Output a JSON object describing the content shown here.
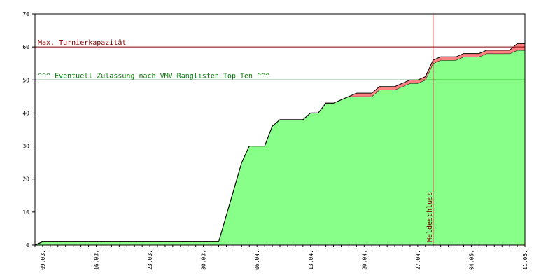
{
  "chart_data": {
    "type": "stacked-area",
    "categories": [
      null,
      "09.03.",
      null,
      null,
      null,
      null,
      null,
      null,
      "16.03.",
      null,
      null,
      null,
      null,
      null,
      null,
      "23.03.",
      null,
      null,
      null,
      null,
      null,
      null,
      "30.03.",
      null,
      null,
      null,
      null,
      null,
      null,
      "06.04.",
      null,
      null,
      null,
      null,
      null,
      null,
      "13.04.",
      null,
      null,
      null,
      null,
      null,
      null,
      "20.04.",
      null,
      null,
      null,
      null,
      null,
      null,
      "27.04.",
      null,
      null,
      null,
      null,
      null,
      null,
      "04.05.",
      null,
      null,
      null,
      null,
      null,
      null,
      "11.05."
    ],
    "series": [
      {
        "color": "#88ff88",
        "values": [
          0,
          1,
          1,
          1,
          1,
          1,
          1,
          1,
          1,
          1,
          1,
          1,
          1,
          1,
          1,
          1,
          1,
          1,
          1,
          1,
          1,
          1,
          1,
          1,
          1,
          9,
          17,
          25,
          30,
          30,
          30,
          36,
          38,
          38,
          38,
          38,
          40,
          40,
          43,
          43,
          44,
          45,
          45,
          45,
          45,
          47,
          47,
          47,
          48,
          49,
          49,
          50,
          55,
          56,
          56,
          56,
          57,
          57,
          57,
          58,
          58,
          58,
          58,
          59,
          59
        ]
      },
      {
        "color": "#ff8080",
        "values": [
          0,
          0,
          0,
          0,
          0,
          0,
          0,
          0,
          0,
          0,
          0,
          0,
          0,
          0,
          0,
          0,
          0,
          0,
          0,
          0,
          0,
          0,
          0,
          0,
          0,
          0,
          0,
          0,
          0,
          0,
          0,
          0,
          0,
          0,
          0,
          0,
          0,
          0,
          0,
          0,
          0,
          0,
          1,
          1,
          1,
          1,
          1,
          1,
          1,
          1,
          1,
          1,
          1,
          1,
          1,
          1,
          1,
          1,
          1,
          1,
          1,
          1,
          1,
          2,
          2
        ]
      }
    ],
    "ylim": [
      0,
      70
    ],
    "yticks": [
      0,
      10,
      20,
      30,
      40,
      50,
      60,
      70
    ],
    "hlines": [
      {
        "value": 60,
        "label": "Max. Turnierkapazität",
        "color": "#800000"
      },
      {
        "value": 50,
        "label": "^^^ Eventuell Zulassung nach VMV-Ranglisten-Top-Ten ^^^",
        "color": "#008000"
      }
    ],
    "vlines": [
      {
        "at": 52,
        "label": "Meldeschluss",
        "color": "#800000"
      }
    ]
  }
}
